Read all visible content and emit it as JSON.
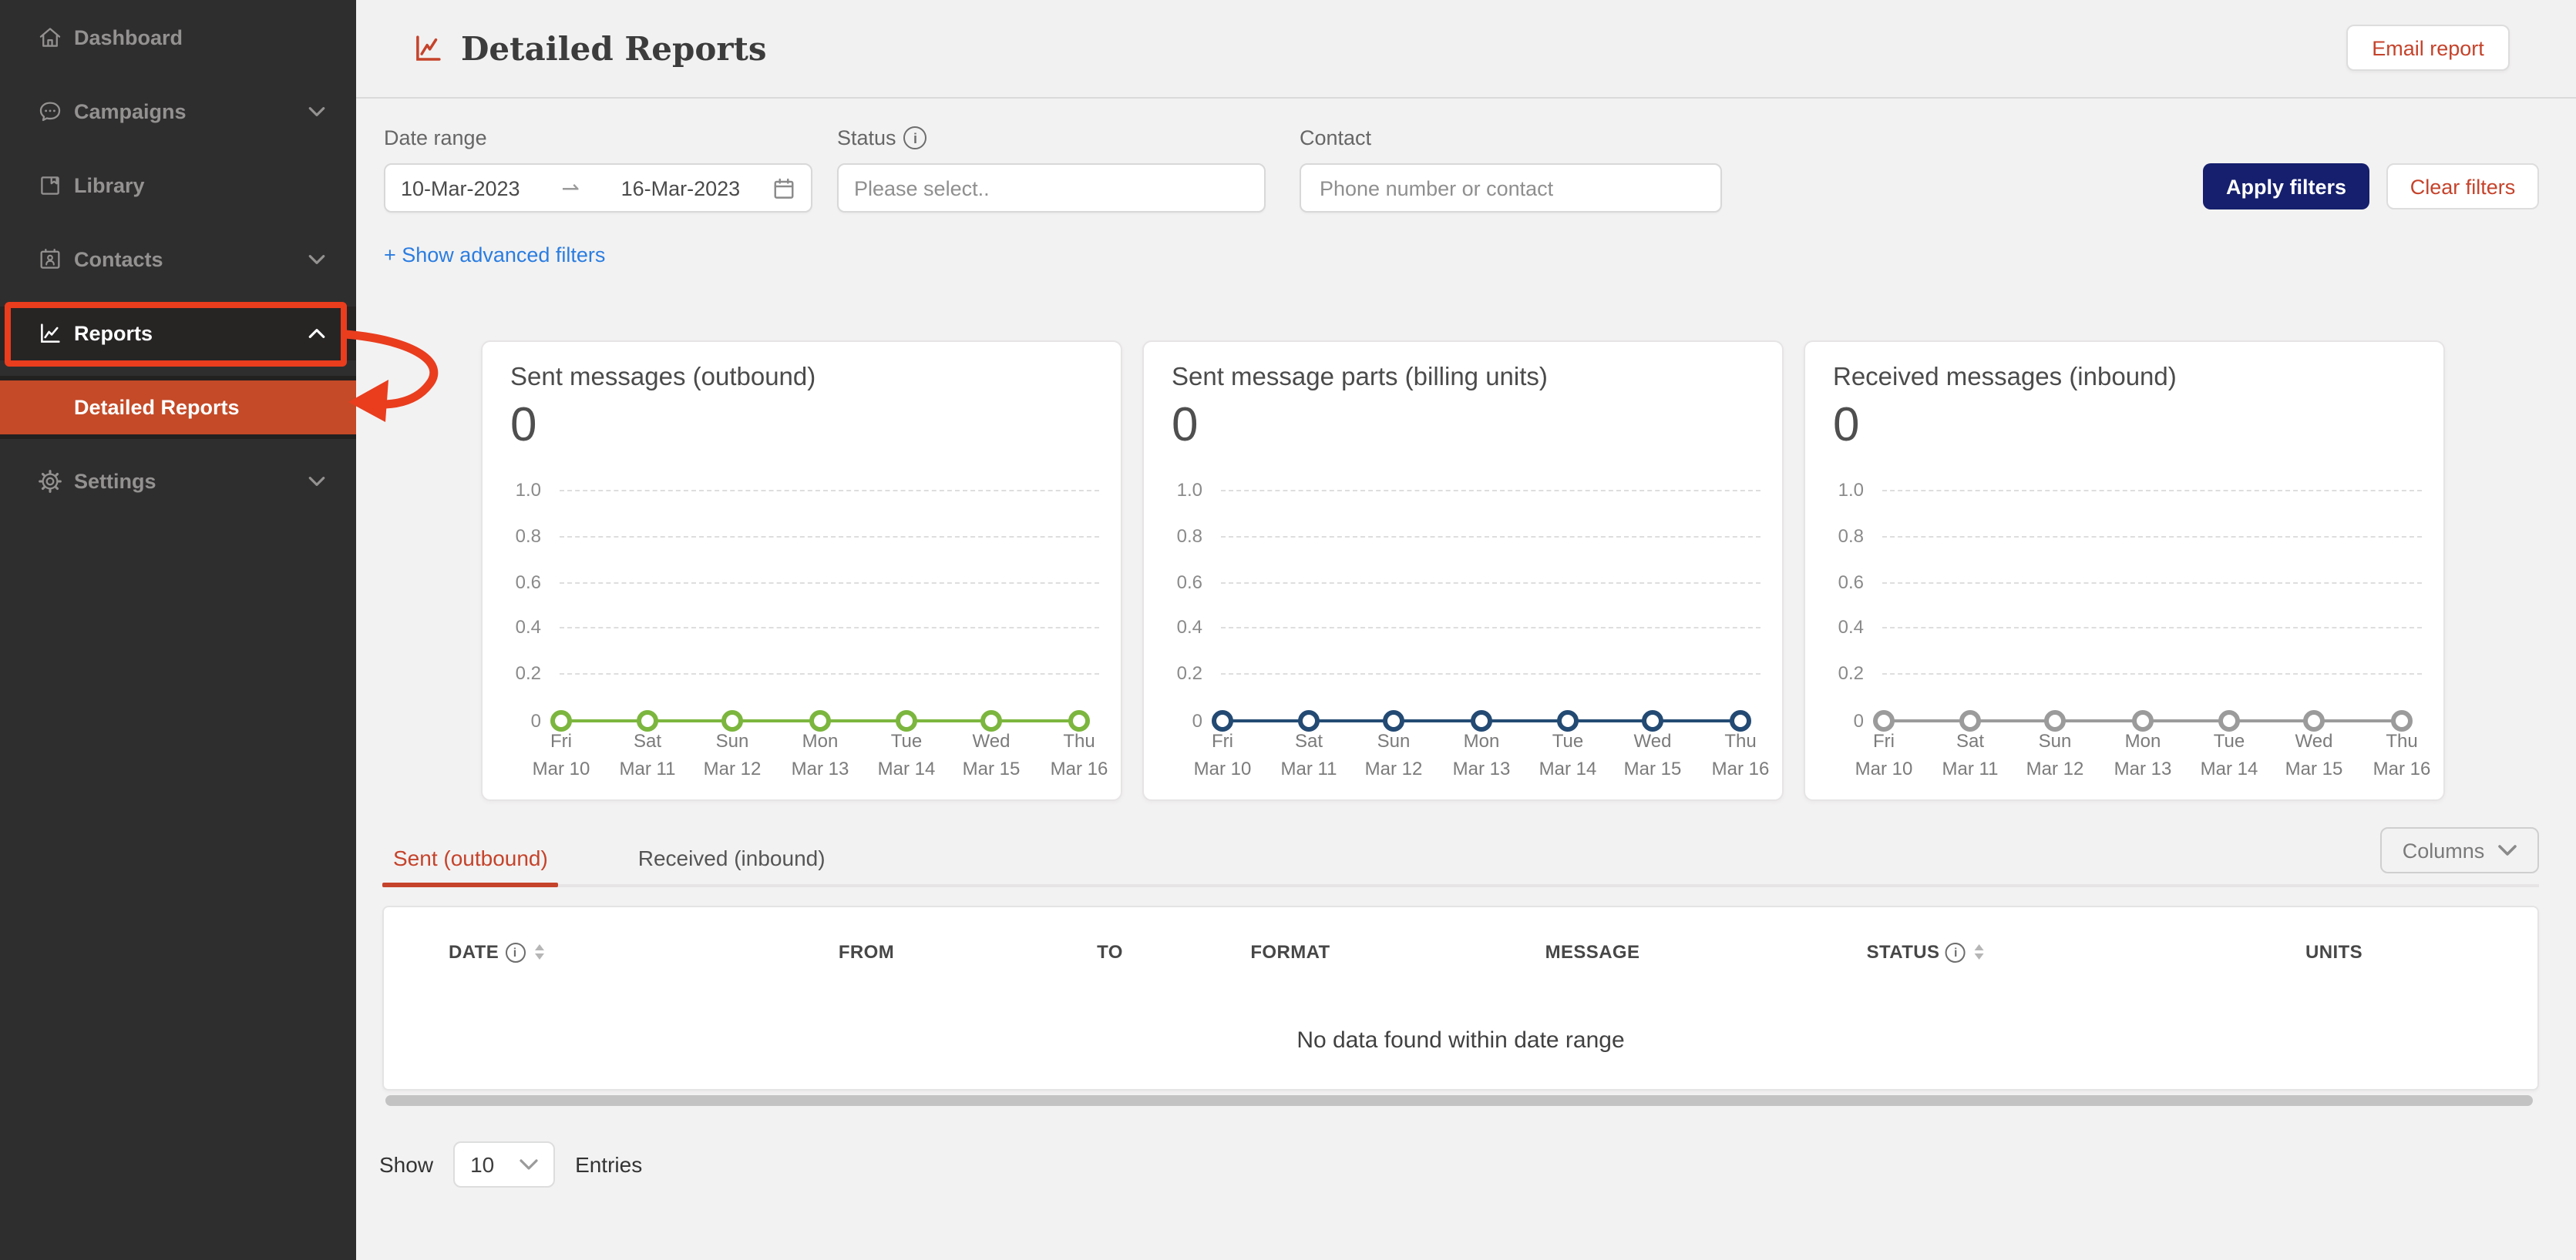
{
  "colors": {
    "sidebar_bg": "#2f2e2e",
    "selected_item_bg": "#c44a28",
    "annotation_red": "#e93d1e",
    "accent_red": "#c5432b",
    "apply_button_navy": "#151f6d",
    "link_blue": "#2a7de1",
    "chart_green": "#7cb63e",
    "chart_navy": "#234a73",
    "chart_gray": "#9b9b9b"
  },
  "sidebar": {
    "items": [
      {
        "label": "Dashboard",
        "icon": "home"
      },
      {
        "label": "Campaigns",
        "icon": "chat-bubble",
        "chevron": "down"
      },
      {
        "label": "Library",
        "icon": "book"
      },
      {
        "label": "Contacts",
        "icon": "address-book",
        "chevron": "down"
      },
      {
        "label": "Reports",
        "icon": "line-chart",
        "chevron": "up",
        "state": "active-annotated"
      },
      {
        "label": "Detailed Reports",
        "state": "selected"
      },
      {
        "label": "Settings",
        "icon": "gear",
        "chevron": "down"
      }
    ]
  },
  "header": {
    "title": "Detailed Reports",
    "email_report_label": "Email report"
  },
  "filters": {
    "date_range_label": "Date range",
    "date_start": "10-Mar-2023",
    "date_arrow": "⇀",
    "date_end": "16-Mar-2023",
    "status_label": "Status",
    "status_placeholder": "Please select..",
    "contact_label": "Contact",
    "contact_placeholder": "Phone number or contact",
    "apply_label": "Apply filters",
    "clear_label": "Clear filters",
    "advanced_link": "+ Show advanced filters"
  },
  "chart_data": [
    {
      "type": "line",
      "title": "Sent messages (outbound)",
      "total": "0",
      "line_color": "#7cb63e",
      "ylim": [
        0,
        1
      ],
      "yticks": [
        "1.0",
        "0.8",
        "0.6",
        "0.4",
        "0.2",
        "0"
      ],
      "grid": "horizontal-dashed",
      "categories": [
        {
          "day": "Fri",
          "date": "Mar 10"
        },
        {
          "day": "Sat",
          "date": "Mar 11"
        },
        {
          "day": "Sun",
          "date": "Mar 12"
        },
        {
          "day": "Mon",
          "date": "Mar 13"
        },
        {
          "day": "Tue",
          "date": "Mar 14"
        },
        {
          "day": "Wed",
          "date": "Mar 15"
        },
        {
          "day": "Thu",
          "date": "Mar 16"
        }
      ],
      "values": [
        0,
        0,
        0,
        0,
        0,
        0,
        0
      ]
    },
    {
      "type": "line",
      "title": "Sent message parts (billing units)",
      "total": "0",
      "line_color": "#234a73",
      "ylim": [
        0,
        1
      ],
      "yticks": [
        "1.0",
        "0.8",
        "0.6",
        "0.4",
        "0.2",
        "0"
      ],
      "grid": "horizontal-dashed",
      "categories": [
        {
          "day": "Fri",
          "date": "Mar 10"
        },
        {
          "day": "Sat",
          "date": "Mar 11"
        },
        {
          "day": "Sun",
          "date": "Mar 12"
        },
        {
          "day": "Mon",
          "date": "Mar 13"
        },
        {
          "day": "Tue",
          "date": "Mar 14"
        },
        {
          "day": "Wed",
          "date": "Mar 15"
        },
        {
          "day": "Thu",
          "date": "Mar 16"
        }
      ],
      "values": [
        0,
        0,
        0,
        0,
        0,
        0,
        0
      ]
    },
    {
      "type": "line",
      "title": "Received messages (inbound)",
      "total": "0",
      "line_color": "#9b9b9b",
      "ylim": [
        0,
        1
      ],
      "yticks": [
        "1.0",
        "0.8",
        "0.6",
        "0.4",
        "0.2",
        "0"
      ],
      "grid": "horizontal-dashed",
      "categories": [
        {
          "day": "Fri",
          "date": "Mar 10"
        },
        {
          "day": "Sat",
          "date": "Mar 11"
        },
        {
          "day": "Sun",
          "date": "Mar 12"
        },
        {
          "day": "Mon",
          "date": "Mar 13"
        },
        {
          "day": "Tue",
          "date": "Mar 14"
        },
        {
          "day": "Wed",
          "date": "Mar 15"
        },
        {
          "day": "Thu",
          "date": "Mar 16"
        }
      ],
      "values": [
        0,
        0,
        0,
        0,
        0,
        0,
        0
      ]
    }
  ],
  "tabs": {
    "sent": "Sent (outbound)",
    "received": "Received (inbound)",
    "columns_button": "Columns"
  },
  "table": {
    "headers": [
      "DATE",
      "FROM",
      "TO",
      "FORMAT",
      "MESSAGE",
      "STATUS",
      "UNITS"
    ],
    "header_info_icons": [
      "DATE",
      "STATUS"
    ],
    "header_sort_icons": [
      "DATE",
      "STATUS"
    ],
    "rows": [],
    "empty_message": "No data found within date range"
  },
  "pagination": {
    "show_label": "Show",
    "page_size": "10",
    "entries_label": "Entries"
  }
}
